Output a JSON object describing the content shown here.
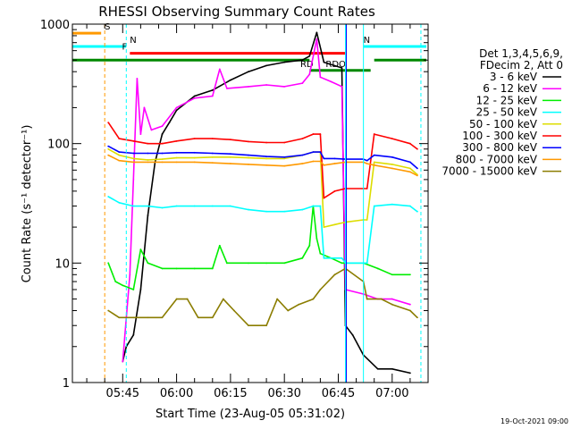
{
  "chart_data": {
    "type": "line",
    "title": "RHESSI Observing Summary Count Rates",
    "xlabel": "Start Time (23-Aug-05 05:31:02)",
    "ylabel": "Count Rate (s⁻¹ detector⁻¹)",
    "yscale": "log",
    "ylim": [
      1,
      1000
    ],
    "xlim": [
      "05:31",
      "07:10"
    ],
    "x_unit": "time (HH:MM, 23-Aug-05)",
    "x_tick_labels": [
      "05:45",
      "06:00",
      "06:15",
      "06:30",
      "06:45",
      "07:00"
    ],
    "x_tick_minutes": [
      345,
      360,
      375,
      390,
      405,
      420
    ],
    "y_tick_labels": [
      "1",
      "10",
      "100",
      "1000"
    ],
    "y_tick_values": [
      1,
      10,
      100,
      1000
    ],
    "legend_header": [
      "Det 1,3,4,5,6,9,",
      "FDecim 2, Att 0"
    ],
    "legend_placement": "right",
    "series": [
      {
        "name": "3 - 6 keV",
        "color": "#000000",
        "points": [
          [
            "05:45",
            1.5
          ],
          [
            "05:46",
            2
          ],
          [
            "05:48",
            2.5
          ],
          [
            "05:50",
            6
          ],
          [
            "05:52",
            25
          ],
          [
            "05:54",
            70
          ],
          [
            "05:56",
            120
          ],
          [
            "05:58",
            150
          ],
          [
            "06:00",
            190
          ],
          [
            "06:05",
            250
          ],
          [
            "06:10",
            280
          ],
          [
            "06:15",
            340
          ],
          [
            "06:20",
            400
          ],
          [
            "06:25",
            450
          ],
          [
            "06:30",
            480
          ],
          [
            "06:35",
            500
          ],
          [
            "06:37",
            540
          ],
          [
            "06:39",
            850
          ],
          [
            "06:41",
            480
          ],
          [
            "06:46",
            430
          ],
          [
            "06:47",
            3
          ],
          [
            "06:49",
            2.5
          ],
          [
            "06:52",
            1.7
          ],
          [
            "06:56",
            1.3
          ],
          [
            "07:00",
            1.3
          ],
          [
            "07:05",
            1.2
          ]
        ]
      },
      {
        "name": "6 - 12 keV",
        "color": "#ff00ff",
        "points": [
          [
            "05:45",
            1.5
          ],
          [
            "05:47",
            8
          ],
          [
            "05:48",
            50
          ],
          [
            "05:49",
            350
          ],
          [
            "05:50",
            120
          ],
          [
            "05:51",
            200
          ],
          [
            "05:53",
            130
          ],
          [
            "05:56",
            140
          ],
          [
            "06:00",
            200
          ],
          [
            "06:05",
            240
          ],
          [
            "06:10",
            250
          ],
          [
            "06:12",
            420
          ],
          [
            "06:14",
            290
          ],
          [
            "06:20",
            300
          ],
          [
            "06:25",
            310
          ],
          [
            "06:30",
            300
          ],
          [
            "06:35",
            320
          ],
          [
            "06:37",
            380
          ],
          [
            "06:39",
            750
          ],
          [
            "06:40",
            360
          ],
          [
            "06:43",
            330
          ],
          [
            "06:46",
            300
          ],
          [
            "06:47",
            6
          ],
          [
            "06:52",
            5.5
          ],
          [
            "06:56",
            5
          ],
          [
            "07:00",
            5
          ],
          [
            "07:05",
            4.5
          ]
        ]
      },
      {
        "name": "12 - 25 keV",
        "color": "#00ee00",
        "points": [
          [
            "05:41",
            10
          ],
          [
            "05:43",
            7
          ],
          [
            "05:45",
            6.5
          ],
          [
            "05:48",
            6
          ],
          [
            "05:50",
            13
          ],
          [
            "05:52",
            10
          ],
          [
            "05:56",
            9
          ],
          [
            "06:00",
            9
          ],
          [
            "06:05",
            9
          ],
          [
            "06:10",
            9
          ],
          [
            "06:12",
            14
          ],
          [
            "06:14",
            10
          ],
          [
            "06:20",
            10
          ],
          [
            "06:25",
            10
          ],
          [
            "06:30",
            10
          ],
          [
            "06:35",
            11
          ],
          [
            "06:37",
            14
          ],
          [
            "06:38",
            30
          ],
          [
            "06:39",
            16
          ],
          [
            "06:40",
            12
          ],
          [
            "06:43",
            11
          ],
          [
            "06:46",
            10
          ],
          [
            "06:47",
            10
          ],
          [
            "06:52",
            10
          ],
          [
            "06:56",
            9
          ],
          [
            "07:00",
            8
          ],
          [
            "07:05",
            8
          ]
        ]
      },
      {
        "name": "25 - 50 keV",
        "color": "#00ffff",
        "points": [
          [
            "05:41",
            36
          ],
          [
            "05:44",
            32
          ],
          [
            "05:48",
            30
          ],
          [
            "05:52",
            30
          ],
          [
            "05:56",
            29
          ],
          [
            "06:00",
            30
          ],
          [
            "06:05",
            30
          ],
          [
            "06:10",
            30
          ],
          [
            "06:15",
            30
          ],
          [
            "06:20",
            28
          ],
          [
            "06:25",
            27
          ],
          [
            "06:30",
            27
          ],
          [
            "06:35",
            28
          ],
          [
            "06:38",
            30
          ],
          [
            "06:40",
            30
          ],
          [
            "06:41",
            11
          ],
          [
            "06:44",
            11
          ],
          [
            "06:46",
            11
          ],
          [
            "06:47",
            10
          ],
          [
            "06:53",
            10
          ],
          [
            "06:55",
            30
          ],
          [
            "07:00",
            31
          ],
          [
            "07:05",
            30
          ],
          [
            "07:07",
            27
          ]
        ]
      },
      {
        "name": "50 - 100 keV",
        "color": "#dddd00",
        "points": [
          [
            "05:41",
            90
          ],
          [
            "05:44",
            80
          ],
          [
            "05:48",
            75
          ],
          [
            "05:52",
            73
          ],
          [
            "05:56",
            74
          ],
          [
            "06:00",
            76
          ],
          [
            "06:05",
            76
          ],
          [
            "06:10",
            77
          ],
          [
            "06:15",
            77
          ],
          [
            "06:20",
            76
          ],
          [
            "06:25",
            75
          ],
          [
            "06:30",
            75
          ],
          [
            "06:35",
            80
          ],
          [
            "06:38",
            85
          ],
          [
            "06:40",
            85
          ],
          [
            "06:41",
            20
          ],
          [
            "06:44",
            21
          ],
          [
            "06:47",
            22
          ],
          [
            "06:52",
            23
          ],
          [
            "06:53",
            23
          ],
          [
            "06:55",
            70
          ],
          [
            "07:00",
            67
          ],
          [
            "07:05",
            62
          ],
          [
            "07:07",
            55
          ]
        ]
      },
      {
        "name": "100 - 300 keV",
        "color": "#ff0000",
        "points": [
          [
            "05:41",
            150
          ],
          [
            "05:44",
            110
          ],
          [
            "05:48",
            105
          ],
          [
            "05:52",
            100
          ],
          [
            "05:56",
            100
          ],
          [
            "06:00",
            105
          ],
          [
            "06:05",
            110
          ],
          [
            "06:10",
            110
          ],
          [
            "06:15",
            108
          ],
          [
            "06:20",
            104
          ],
          [
            "06:25",
            102
          ],
          [
            "06:30",
            102
          ],
          [
            "06:35",
            110
          ],
          [
            "06:38",
            120
          ],
          [
            "06:40",
            120
          ],
          [
            "06:41",
            35
          ],
          [
            "06:44",
            40
          ],
          [
            "06:47",
            42
          ],
          [
            "06:52",
            42
          ],
          [
            "06:53",
            42
          ],
          [
            "06:55",
            120
          ],
          [
            "07:00",
            110
          ],
          [
            "07:05",
            100
          ],
          [
            "07:07",
            90
          ]
        ]
      },
      {
        "name": "300 - 800 keV",
        "color": "#0000ff",
        "points": [
          [
            "05:41",
            95
          ],
          [
            "05:44",
            85
          ],
          [
            "05:48",
            83
          ],
          [
            "05:52",
            83
          ],
          [
            "05:56",
            83
          ],
          [
            "06:00",
            84
          ],
          [
            "06:05",
            84
          ],
          [
            "06:10",
            83
          ],
          [
            "06:15",
            82
          ],
          [
            "06:20",
            80
          ],
          [
            "06:25",
            78
          ],
          [
            "06:30",
            77
          ],
          [
            "06:35",
            80
          ],
          [
            "06:38",
            85
          ],
          [
            "06:40",
            85
          ],
          [
            "06:41",
            75
          ],
          [
            "06:44",
            75
          ],
          [
            "06:47",
            74
          ],
          [
            "06:52",
            74
          ],
          [
            "06:53",
            72
          ],
          [
            "06:55",
            80
          ],
          [
            "07:00",
            77
          ],
          [
            "07:05",
            70
          ],
          [
            "07:07",
            62
          ]
        ]
      },
      {
        "name": "800 - 7000 keV",
        "color": "#ff9900",
        "points": [
          [
            "05:41",
            80
          ],
          [
            "05:44",
            72
          ],
          [
            "05:48",
            70
          ],
          [
            "05:52",
            70
          ],
          [
            "05:56",
            70
          ],
          [
            "06:00",
            70
          ],
          [
            "06:05",
            70
          ],
          [
            "06:10",
            69
          ],
          [
            "06:15",
            68
          ],
          [
            "06:20",
            67
          ],
          [
            "06:25",
            66
          ],
          [
            "06:30",
            65
          ],
          [
            "06:35",
            68
          ],
          [
            "06:38",
            71
          ],
          [
            "06:40",
            71
          ],
          [
            "06:41",
            66
          ],
          [
            "06:44",
            68
          ],
          [
            "06:47",
            70
          ],
          [
            "06:52",
            70
          ],
          [
            "06:53",
            68
          ],
          [
            "06:55",
            66
          ],
          [
            "07:00",
            62
          ],
          [
            "07:05",
            58
          ],
          [
            "07:07",
            54
          ]
        ]
      },
      {
        "name": "7000 - 15000 keV",
        "color": "#8b7d00",
        "points": [
          [
            "05:41",
            4
          ],
          [
            "05:44",
            3.5
          ],
          [
            "05:48",
            3.5
          ],
          [
            "05:52",
            3.5
          ],
          [
            "05:56",
            3.5
          ],
          [
            "06:00",
            5
          ],
          [
            "06:03",
            5
          ],
          [
            "06:06",
            3.5
          ],
          [
            "06:10",
            3.5
          ],
          [
            "06:13",
            5
          ],
          [
            "06:16",
            4
          ],
          [
            "06:20",
            3
          ],
          [
            "06:25",
            3
          ],
          [
            "06:28",
            5
          ],
          [
            "06:31",
            4
          ],
          [
            "06:34",
            4.5
          ],
          [
            "06:38",
            5
          ],
          [
            "06:40",
            6
          ],
          [
            "06:44",
            8
          ],
          [
            "06:47",
            9
          ],
          [
            "06:52",
            7
          ],
          [
            "06:53",
            5
          ],
          [
            "06:57",
            5
          ],
          [
            "07:00",
            4.5
          ],
          [
            "07:05",
            4
          ],
          [
            "07:07",
            3.5
          ]
        ]
      }
    ],
    "annotations": [
      {
        "label": "S",
        "color": "#ff9900",
        "flag_level": 840,
        "start": "05:31",
        "end": "05:39"
      },
      {
        "label": "N",
        "color": "#00ffff",
        "flag_level": 650,
        "start": "05:31",
        "end": "05:46"
      },
      {
        "label": "N",
        "color": "#00ffff",
        "flag_level": 650,
        "start": "06:52",
        "end": "07:10"
      },
      {
        "label": "F",
        "color": "#ff0000",
        "flag_level": 570,
        "start": "05:47",
        "end": "06:47"
      },
      {
        "label": "",
        "color": "#008800",
        "flag_level": 500,
        "start": "05:31",
        "end": "06:37"
      },
      {
        "label": "RD",
        "color": "#008800",
        "flag_level": 410,
        "start": "06:37",
        "end": "06:40"
      },
      {
        "label": "RDO",
        "color": "#008800",
        "flag_level": 410,
        "start": "06:40",
        "end": "06:54"
      },
      {
        "label": "",
        "color": "#008800",
        "flag_level": 500,
        "start": "06:55",
        "end": "07:10"
      }
    ],
    "vlines": [
      {
        "time": "05:31",
        "color": "#00ffff",
        "style": "solid"
      },
      {
        "time": "05:40",
        "color": "#ff9900",
        "style": "dashed"
      },
      {
        "time": "05:46",
        "color": "#00ffff",
        "style": "dashed"
      },
      {
        "time": "06:47",
        "color": "#00ffff",
        "style": "solid"
      },
      {
        "time": "06:47",
        "color": "#0000ff",
        "style": "solid"
      },
      {
        "time": "06:52",
        "color": "#00ffff",
        "style": "solid"
      },
      {
        "time": "07:08",
        "color": "#00ffff",
        "style": "dashed"
      }
    ],
    "footer_date": "19-Oct-2021 09:00"
  }
}
